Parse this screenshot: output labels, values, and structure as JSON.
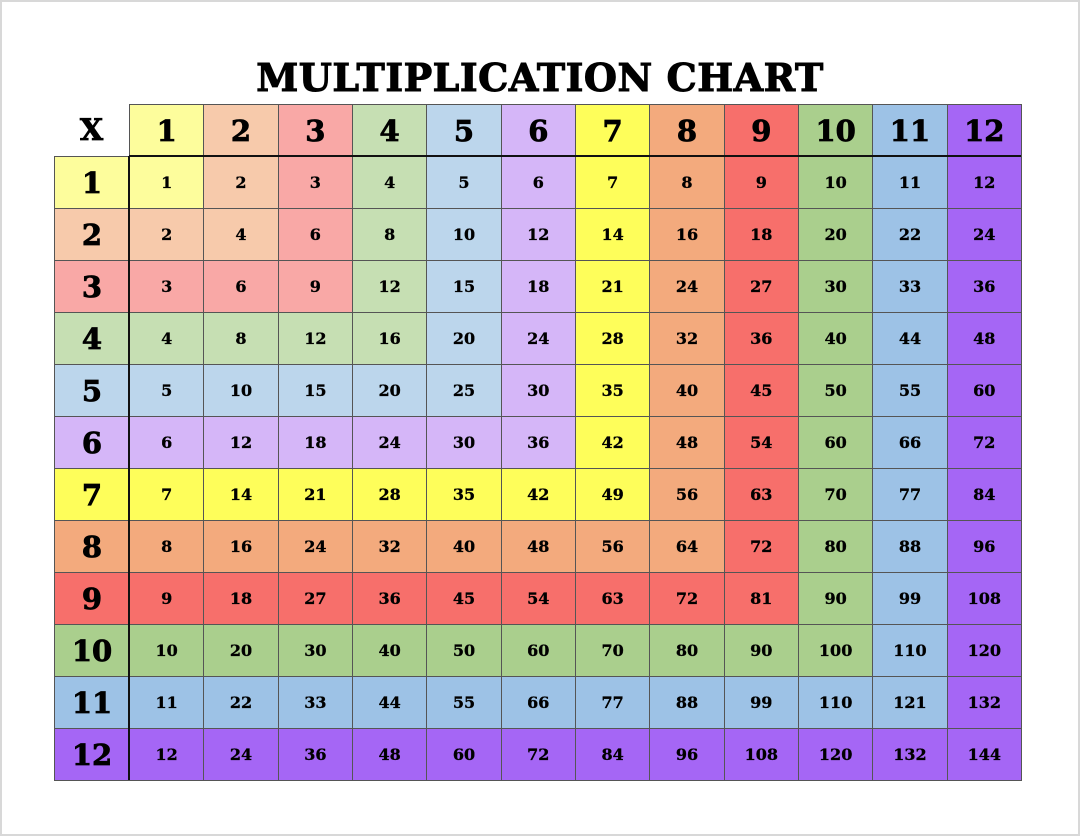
{
  "title": "MULTIPLICATION CHART",
  "corner_label": "X",
  "headers": [
    "1",
    "2",
    "3",
    "4",
    "5",
    "6",
    "7",
    "8",
    "9",
    "10",
    "11",
    "12"
  ],
  "colors": [
    "#fdfd9c",
    "#f7caab",
    "#f9a8a6",
    "#c6dfb3",
    "#bcd6ec",
    "#d5b6f8",
    "#fefe5a",
    "#f3aa7d",
    "#f76f6b",
    "#aacf8d",
    "#9dc2e6",
    "#a566f5"
  ],
  "rows": [
    [
      "1",
      "2",
      "3",
      "4",
      "5",
      "6",
      "7",
      "8",
      "9",
      "10",
      "11",
      "12"
    ],
    [
      "2",
      "4",
      "6",
      "8",
      "10",
      "12",
      "14",
      "16",
      "18",
      "20",
      "22",
      "24"
    ],
    [
      "3",
      "6",
      "9",
      "12",
      "15",
      "18",
      "21",
      "24",
      "27",
      "30",
      "33",
      "36"
    ],
    [
      "4",
      "8",
      "12",
      "16",
      "20",
      "24",
      "28",
      "32",
      "36",
      "40",
      "44",
      "48"
    ],
    [
      "5",
      "10",
      "15",
      "20",
      "25",
      "30",
      "35",
      "40",
      "45",
      "50",
      "55",
      "60"
    ],
    [
      "6",
      "12",
      "18",
      "24",
      "30",
      "36",
      "42",
      "48",
      "54",
      "60",
      "66",
      "72"
    ],
    [
      "7",
      "14",
      "21",
      "28",
      "35",
      "42",
      "49",
      "56",
      "63",
      "70",
      "77",
      "84"
    ],
    [
      "8",
      "16",
      "24",
      "32",
      "40",
      "48",
      "56",
      "64",
      "72",
      "80",
      "88",
      "96"
    ],
    [
      "9",
      "18",
      "27",
      "36",
      "45",
      "54",
      "63",
      "72",
      "81",
      "90",
      "99",
      "108"
    ],
    [
      "10",
      "20",
      "30",
      "40",
      "50",
      "60",
      "70",
      "80",
      "90",
      "100",
      "110",
      "120"
    ],
    [
      "11",
      "22",
      "33",
      "44",
      "55",
      "66",
      "77",
      "88",
      "99",
      "110",
      "121",
      "132"
    ],
    [
      "12",
      "24",
      "36",
      "48",
      "60",
      "72",
      "84",
      "96",
      "108",
      "120",
      "132",
      "144"
    ]
  ]
}
